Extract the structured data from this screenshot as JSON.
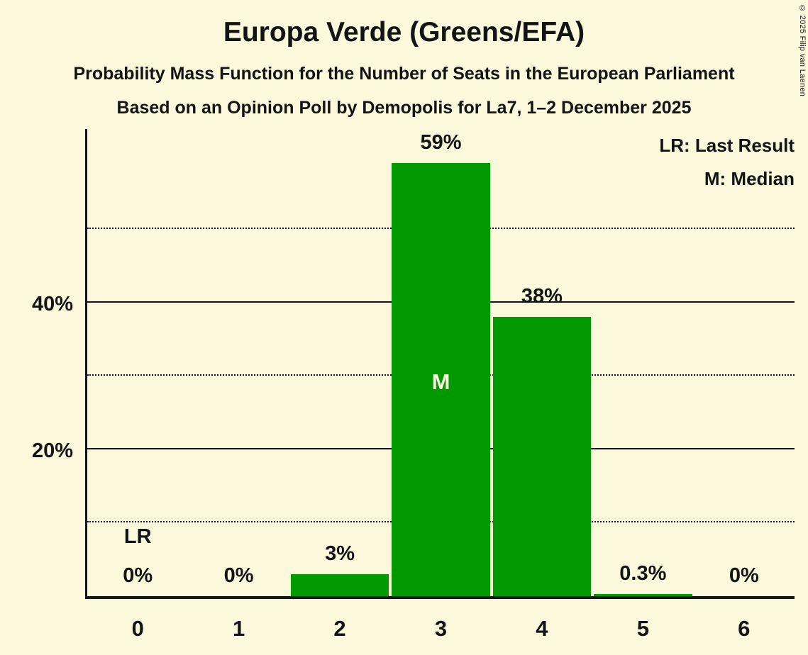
{
  "header": {
    "title": "Europa Verde (Greens/EFA)",
    "subtitle": "Probability Mass Function for the Number of Seats in the European Parliament",
    "poll_line": "Based on an Opinion Poll by Demopolis for La7, 1–2 December 2025"
  },
  "legend": {
    "last_result": "LR: Last Result",
    "median": "M: Median"
  },
  "copyright": "© 2025 Filip van Laenen",
  "chart_data": {
    "type": "bar",
    "categories": [
      "0",
      "1",
      "2",
      "3",
      "4",
      "5",
      "6"
    ],
    "values": [
      0,
      0,
      3,
      59,
      38,
      0.3,
      0
    ],
    "value_labels": [
      "0%",
      "0%",
      "3%",
      "59%",
      "38%",
      "0.3%",
      "0%"
    ],
    "title": "Europa Verde (Greens/EFA)",
    "xlabel": "",
    "ylabel": "",
    "ylim": [
      0,
      64
    ],
    "yticks_solid": [
      20,
      40
    ],
    "yticks_dotted": [
      10,
      30,
      50
    ],
    "ytick_labels": [
      "20%",
      "40%"
    ],
    "median_index": 3,
    "median_marker": "M",
    "last_result_index": 0,
    "last_result_marker": "LR",
    "bar_color": "#009900",
    "background_color": "#FCF8DC",
    "axis_color": "#141414",
    "grid": true,
    "legend_position": "top-right"
  }
}
